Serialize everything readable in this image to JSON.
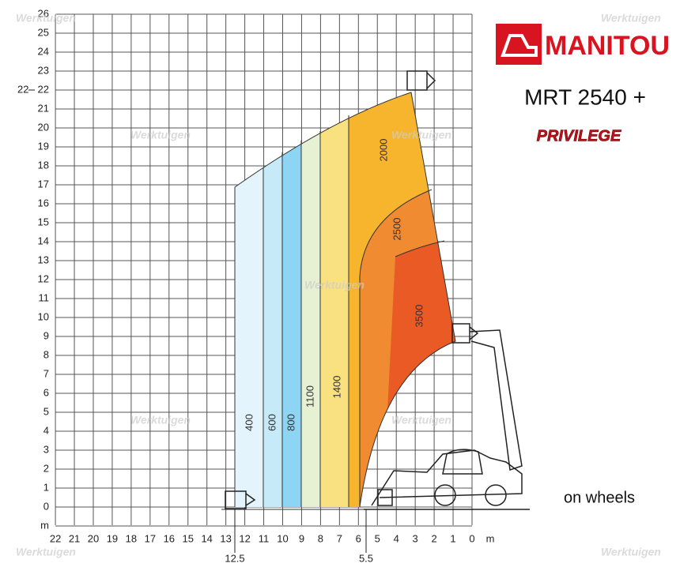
{
  "brand": "MANITOU",
  "model": "MRT 2540 +",
  "series_name": "PRIVILEGE",
  "note": "on wheels",
  "watermark": "Werktuigen",
  "zones": [
    "400",
    "600",
    "800",
    "1100",
    "1400",
    "2000",
    "2500",
    "3500"
  ],
  "y_axis": {
    "labels": [
      0,
      1,
      2,
      3,
      4,
      5,
      6,
      7,
      8,
      9,
      10,
      11,
      12,
      13,
      14,
      15,
      16,
      17,
      18,
      19,
      20,
      21,
      22,
      23,
      24,
      25,
      26
    ],
    "unit": "m",
    "side_mark": "22"
  },
  "x_axis": {
    "labels": [
      22,
      21,
      20,
      19,
      18,
      17,
      16,
      15,
      14,
      13,
      12,
      11,
      10,
      9,
      8,
      7,
      6,
      5,
      4,
      3,
      2,
      1,
      0
    ],
    "unit": "m",
    "marks": [
      "12.5",
      "5.5"
    ]
  }
}
